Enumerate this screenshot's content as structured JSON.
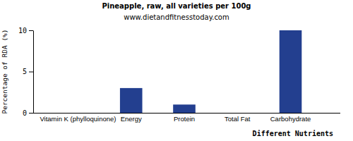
{
  "chart_data": {
    "type": "bar",
    "title": "Pineapple, raw, all varieties per 100g",
    "subtitle": "www.dietandfitnesstoday.com",
    "x_label": "Different Nutrients",
    "y_label": "Percentage of RDA (%)",
    "categories": [
      "Vitamin K (phylloquinone)",
      "Energy",
      "Protein",
      "Total Fat",
      "Carbohydrate"
    ],
    "values": [
      0,
      3,
      1,
      0,
      10
    ],
    "color": "#233f8f",
    "ylim": [
      0,
      10
    ],
    "yticks": [
      0,
      5,
      10
    ],
    "grid": false
  }
}
